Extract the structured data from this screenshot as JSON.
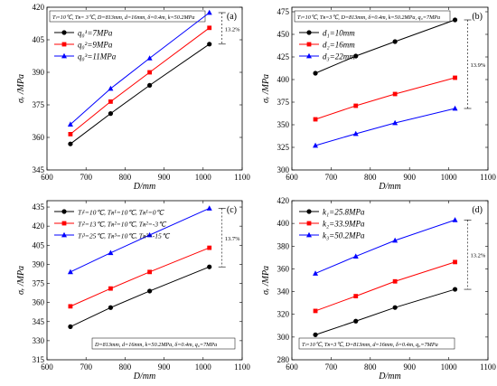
{
  "chart_data": [
    {
      "type": "line",
      "panel_label": "(a)",
      "annotation": "Tₗ=10℃, Tʀ= 3℃, D=813mm, d=16mm, δ=0.4m, k=50.2MPa",
      "xlabel": "D/mm",
      "ylabel": "σᵣ /MPa",
      "xlim": [
        600,
        1100
      ],
      "ylim": [
        345,
        420
      ],
      "xticks": [
        "600",
        "700",
        "800",
        "900",
        "1000",
        "1100"
      ],
      "yticks": [
        "345",
        "360",
        "375",
        "390",
        "405",
        "420"
      ],
      "x": [
        660,
        763,
        863,
        1016
      ],
      "legend_position": "top-left",
      "pct_label": "13.2%",
      "series": [
        {
          "name": "q₀¹=7MPa",
          "color": "#000000",
          "marker": "circle",
          "values": [
            357.0,
            371.0,
            384.0,
            403.0
          ]
        },
        {
          "name": "q₀²=9MPa",
          "color": "#ff0000",
          "marker": "square",
          "values": [
            361.5,
            376.5,
            390.0,
            410.5
          ]
        },
        {
          "name": "q₀³=11MPa",
          "color": "#0000ff",
          "marker": "triangle",
          "values": [
            366.0,
            382.5,
            396.5,
            417.5
          ]
        }
      ]
    },
    {
      "type": "line",
      "panel_label": "(b)",
      "annotation": "Tₗ=10℃, Tʀ=3℃, D=813mm, δ=0.4m, k=50.2MPa, q₀=7MPa",
      "xlabel": "D/mm",
      "ylabel": "σᵣ /MPa",
      "xlim": [
        600,
        1100
      ],
      "ylim": [
        300,
        480
      ],
      "xticks": [
        "600",
        "700",
        "800",
        "900",
        "1000",
        "1100"
      ],
      "yticks": [
        "300",
        "325",
        "350",
        "375",
        "400",
        "425",
        "450",
        "475"
      ],
      "x": [
        660,
        763,
        863,
        1016
      ],
      "legend_position": "top-left",
      "pct_label": "13.9%",
      "series": [
        {
          "name": "d₁=10mm",
          "color": "#000000",
          "marker": "circle",
          "values": [
            407,
            426,
            442,
            466
          ]
        },
        {
          "name": "d₂=16mm",
          "color": "#ff0000",
          "marker": "square",
          "values": [
            356,
            371,
            384,
            402
          ]
        },
        {
          "name": "d₃=22mm",
          "color": "#0000ff",
          "marker": "triangle",
          "values": [
            327,
            340,
            352,
            368
          ]
        }
      ]
    },
    {
      "type": "line",
      "panel_label": "(c)",
      "annotation": "D=813mm, d=16mm, k=50.2MPa, δ=0.4m, q₀=7MPa",
      "xlabel": "D/mm",
      "ylabel": "σᵣ /MPa",
      "xlim": [
        600,
        1100
      ],
      "ylim": [
        315,
        440
      ],
      "xticks": [
        "600",
        "700",
        "800",
        "900",
        "1000",
        "1100"
      ],
      "yticks": [
        "315",
        "330",
        "345",
        "360",
        "375",
        "390",
        "405",
        "420",
        "435"
      ],
      "x": [
        660,
        763,
        863,
        1016
      ],
      "legend_position": "top-left",
      "pct_label": "13.7%",
      "series": [
        {
          "name": "Tₗ¹=10℃, Tʀ¹=10℃, Tʀ¹=0℃",
          "color": "#000000",
          "marker": "circle",
          "values": [
            341,
            356,
            369,
            388
          ]
        },
        {
          "name": "Tₗ²=13℃, Tʀ²=10℃, Tʀ²=-3℃",
          "color": "#ff0000",
          "marker": "square",
          "values": [
            357,
            371,
            384,
            403
          ]
        },
        {
          "name": "Tₗ³=25℃, Tʀ³=10℃, Tʀ³=-15℃",
          "color": "#0000ff",
          "marker": "triangle",
          "values": [
            384,
            399,
            413,
            434
          ]
        }
      ]
    },
    {
      "type": "line",
      "panel_label": "(d)",
      "annotation": "Tₗ=10℃, Tʀ=3℃, D=813mm, d=16mm, δ=0.4m, q₀=7MPa",
      "xlabel": "D/mm",
      "ylabel": "σᵣ /MPa",
      "xlim": [
        600,
        1100
      ],
      "ylim": [
        280,
        420
      ],
      "xticks": [
        "600",
        "700",
        "800",
        "900",
        "1000",
        "1100"
      ],
      "yticks": [
        "280",
        "300",
        "320",
        "340",
        "360",
        "380",
        "400",
        "420"
      ],
      "x": [
        660,
        763,
        863,
        1016
      ],
      "legend_position": "top-left",
      "pct_label": "13.2%",
      "series": [
        {
          "name": "k₁=25.8MPa",
          "color": "#000000",
          "marker": "circle",
          "values": [
            302,
            314,
            326,
            342
          ]
        },
        {
          "name": "k₂=33.9MPa",
          "color": "#ff0000",
          "marker": "square",
          "values": [
            323,
            336,
            349,
            366
          ]
        },
        {
          "name": "k₃=50.2MPa",
          "color": "#0000ff",
          "marker": "triangle",
          "values": [
            356,
            371,
            385,
            403
          ]
        }
      ]
    }
  ]
}
